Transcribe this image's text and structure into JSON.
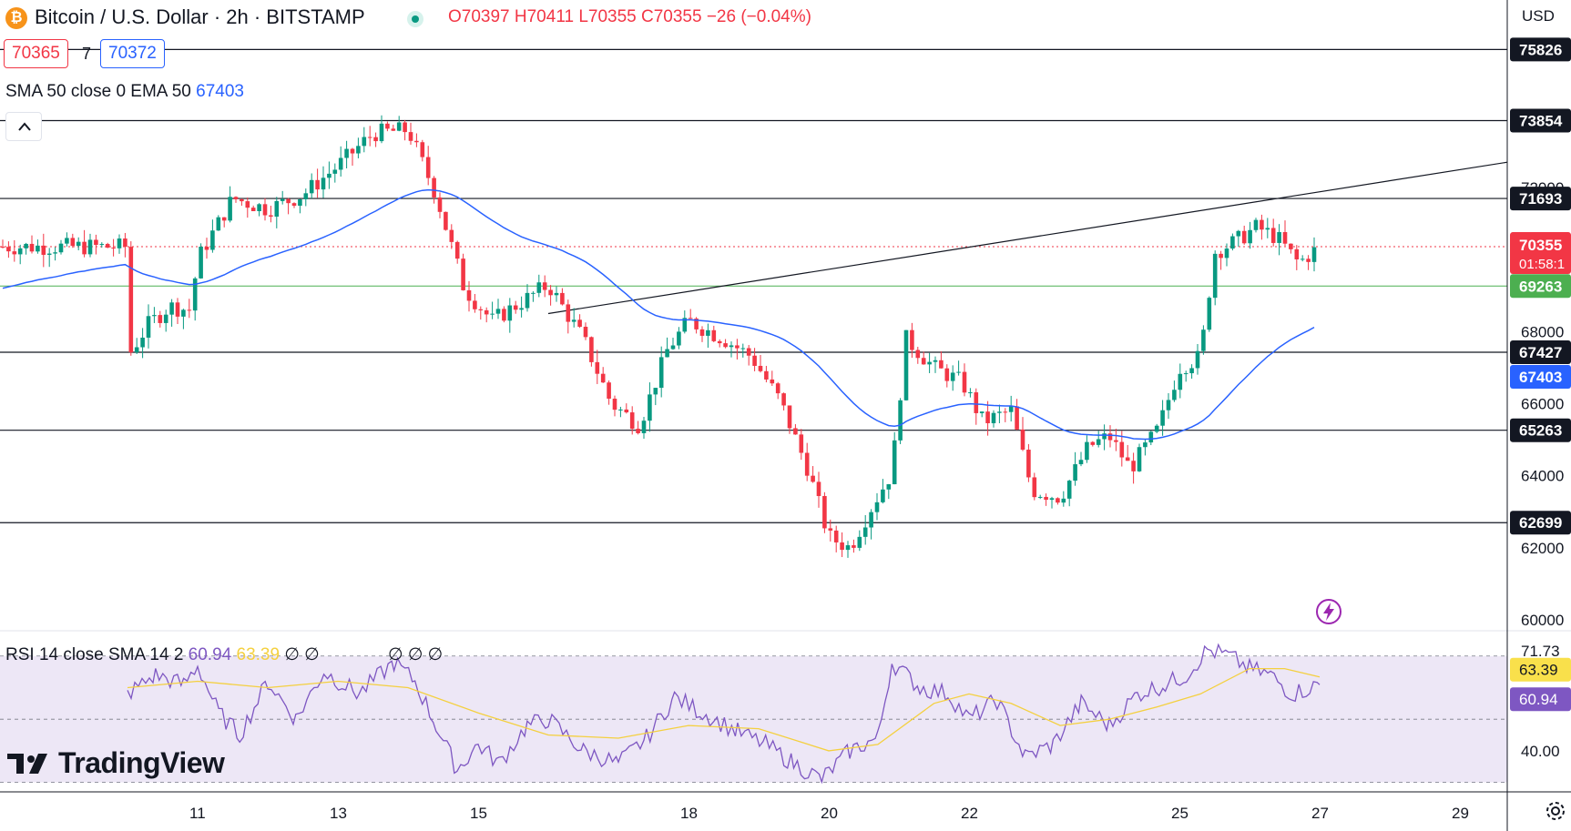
{
  "header": {
    "coin_glyph": "₿",
    "title": "Bitcoin / U.S. Dollar · 2h · BITSTAMP",
    "ohlc_label": "O70397 H70411 L70355 C70355 −26 (−0.04%)",
    "bid": "70365",
    "spread": "7",
    "ask": "70372"
  },
  "indicator": {
    "label": "SMA 50 close 0 EMA 50",
    "value": "67403"
  },
  "rsi_legend": {
    "label": "RSI 14 close SMA 14 2",
    "rsi": "60.94",
    "sma": "63.39",
    "extra": "∅ ∅",
    "extra2": "∅ ∅ ∅"
  },
  "currency": "USD",
  "brand": "TradingView",
  "icons": {
    "collapse": "chevron-up-icon",
    "settings": "gear-icon",
    "alert": "lightning-icon",
    "logo": "tradingview-logo"
  },
  "colors": {
    "up": "#089981",
    "down": "#f23645",
    "ema": "#2962ff",
    "rsi": "#7e57c2",
    "rsi_sma": "#f4d03f",
    "support": "#4caf50",
    "price_line": "#f23645",
    "rsi_band": "#ede7f6"
  },
  "chart_data": [
    {
      "type": "candlestick",
      "title": "Bitcoin / U.S. Dollar · 2h · BITSTAMP",
      "ylim": [
        59700,
        77200
      ],
      "x_ticks": [
        "11",
        "13",
        "15",
        "18",
        "20",
        "22",
        "25",
        "27",
        "29"
      ],
      "y_ticks": [
        "60000",
        "62000",
        "64000",
        "66000",
        "68000",
        "72000"
      ],
      "horizontal_levels": [
        "75826",
        "73854",
        "71693",
        "67427",
        "65263",
        "62699"
      ],
      "support_level": "69263",
      "last_price": "70355",
      "countdown": "01:58:1",
      "ema_value": "67403",
      "trendline": {
        "from": [
          "16",
          68500
        ],
        "to": [
          "29+",
          72700
        ]
      },
      "price_path": [
        [
          "10",
          67300
        ],
        [
          "10.3",
          68200
        ],
        [
          "10.6",
          68700
        ],
        [
          "10.9",
          68600
        ],
        [
          "11",
          70000
        ],
        [
          "11.5",
          71700
        ],
        [
          "12",
          71400
        ],
        [
          "12.5",
          71800
        ],
        [
          "13",
          72600
        ],
        [
          "13.5",
          73500
        ],
        [
          "14",
          73600
        ],
        [
          "14.4",
          71800
        ],
        [
          "14.8",
          69200
        ],
        [
          "15.2",
          68300
        ],
        [
          "15.6",
          68800
        ],
        [
          "16",
          69300
        ],
        [
          "16.5",
          67800
        ],
        [
          "16.9",
          66000
        ],
        [
          "17.3",
          65400
        ],
        [
          "17.7",
          67500
        ],
        [
          "18",
          68300
        ],
        [
          "18.5",
          67800
        ],
        [
          "18.9",
          67300
        ],
        [
          "19.3",
          66100
        ],
        [
          "19.7",
          64200
        ],
        [
          "20",
          62300
        ],
        [
          "20.3",
          62000
        ],
        [
          "20.6",
          63100
        ],
        [
          "20.9",
          64100
        ],
        [
          "21.1",
          67800
        ],
        [
          "21.5",
          67000
        ],
        [
          "21.9",
          66600
        ],
        [
          "22.2",
          65500
        ],
        [
          "22.6",
          65800
        ],
        [
          "22.9",
          63600
        ],
        [
          "23.3",
          63400
        ],
        [
          "23.7",
          64800
        ],
        [
          "24",
          65100
        ],
        [
          "24.3",
          64200
        ],
        [
          "24.7",
          65300
        ],
        [
          "25",
          67000
        ],
        [
          "25.3",
          67300
        ],
        [
          "25.5",
          70200
        ],
        [
          "25.8",
          70500
        ],
        [
          "26.1",
          70900
        ],
        [
          "26.4",
          70600
        ],
        [
          "26.7",
          69900
        ],
        [
          "27",
          70355
        ]
      ]
    },
    {
      "type": "line",
      "title": "RSI 14 close SMA 14 2",
      "ylim": [
        27,
        78
      ],
      "y_ticks": [
        "71.73",
        "54.82",
        "40.00"
      ],
      "rsi": "60.94",
      "rsi_sma": "63.39",
      "rsi_path": [
        [
          "10",
          58
        ],
        [
          "10.4",
          64
        ],
        [
          "10.8",
          61
        ],
        [
          "11",
          67
        ],
        [
          "11.3",
          52
        ],
        [
          "11.6",
          45
        ],
        [
          "12",
          62
        ],
        [
          "12.4",
          50
        ],
        [
          "12.8",
          65
        ],
        [
          "13.3",
          58
        ],
        [
          "13.8",
          68
        ],
        [
          "14.1",
          62
        ],
        [
          "14.4",
          48
        ],
        [
          "14.7",
          34
        ],
        [
          "15",
          42
        ],
        [
          "15.3",
          36
        ],
        [
          "15.7",
          48
        ],
        [
          "16",
          50
        ],
        [
          "16.5",
          40
        ],
        [
          "17",
          36
        ],
        [
          "17.4",
          44
        ],
        [
          "17.8",
          57
        ],
        [
          "18.2",
          52
        ],
        [
          "18.7",
          46
        ],
        [
          "19.1",
          42
        ],
        [
          "19.5",
          36
        ],
        [
          "19.9",
          31
        ],
        [
          "20.3",
          40
        ],
        [
          "20.7",
          44
        ],
        [
          "20.9",
          68
        ],
        [
          "21.3",
          60
        ],
        [
          "21.7",
          58
        ],
        [
          "22",
          50
        ],
        [
          "22.4",
          56
        ],
        [
          "22.8",
          38
        ],
        [
          "23.2",
          42
        ],
        [
          "23.6",
          55
        ],
        [
          "24",
          48
        ],
        [
          "24.4",
          58
        ],
        [
          "24.8",
          61
        ],
        [
          "25.1",
          64
        ],
        [
          "25.4",
          72
        ],
        [
          "25.7",
          70
        ],
        [
          "26",
          66
        ],
        [
          "26.3",
          64
        ],
        [
          "26.6",
          58
        ],
        [
          "27",
          60.94
        ]
      ],
      "sma_path": [
        [
          "10",
          60
        ],
        [
          "11",
          62
        ],
        [
          "12",
          60
        ],
        [
          "13",
          62
        ],
        [
          "14",
          60
        ],
        [
          "15",
          52
        ],
        [
          "16",
          45
        ],
        [
          "17",
          44
        ],
        [
          "18",
          48
        ],
        [
          "19",
          47
        ],
        [
          "20",
          40
        ],
        [
          "20.7",
          42
        ],
        [
          "21.5",
          55
        ],
        [
          "22",
          58
        ],
        [
          "22.6",
          55
        ],
        [
          "23.3",
          48
        ],
        [
          "24",
          50
        ],
        [
          "24.7",
          54
        ],
        [
          "25.3",
          58
        ],
        [
          "26",
          66
        ],
        [
          "26.5",
          66
        ],
        [
          "27",
          63.39
        ]
      ]
    }
  ]
}
